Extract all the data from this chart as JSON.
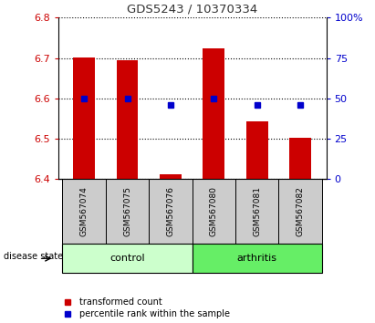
{
  "title": "GDS5243 / 10370334",
  "samples": [
    "GSM567074",
    "GSM567075",
    "GSM567076",
    "GSM567080",
    "GSM567081",
    "GSM567082"
  ],
  "bar_bottoms": [
    6.4,
    6.4,
    6.4,
    6.4,
    6.4,
    6.4
  ],
  "bar_tops": [
    6.702,
    6.695,
    6.413,
    6.725,
    6.543,
    6.503
  ],
  "percentile_values": [
    50,
    50,
    46,
    50,
    46,
    46
  ],
  "ylim_left": [
    6.4,
    6.8
  ],
  "ylim_right": [
    0,
    100
  ],
  "yticks_left": [
    6.4,
    6.5,
    6.6,
    6.7,
    6.8
  ],
  "yticks_right": [
    0,
    25,
    50,
    75,
    100
  ],
  "ytick_labels_right": [
    "0",
    "25",
    "50",
    "75",
    "100%"
  ],
  "bar_color": "#cc0000",
  "dot_color": "#0000cc",
  "control_label": "control",
  "arthritis_label": "arthritis",
  "control_bg": "#ccffcc",
  "arthritis_bg": "#66ee66",
  "sample_bg": "#cccccc",
  "disease_state_label": "disease state",
  "legend_bar_label": "transformed count",
  "legend_dot_label": "percentile rank within the sample",
  "title_color": "#333333",
  "left_tick_color": "#cc0000",
  "right_tick_color": "#0000cc",
  "grid_color": "#000000",
  "bar_width": 0.5
}
